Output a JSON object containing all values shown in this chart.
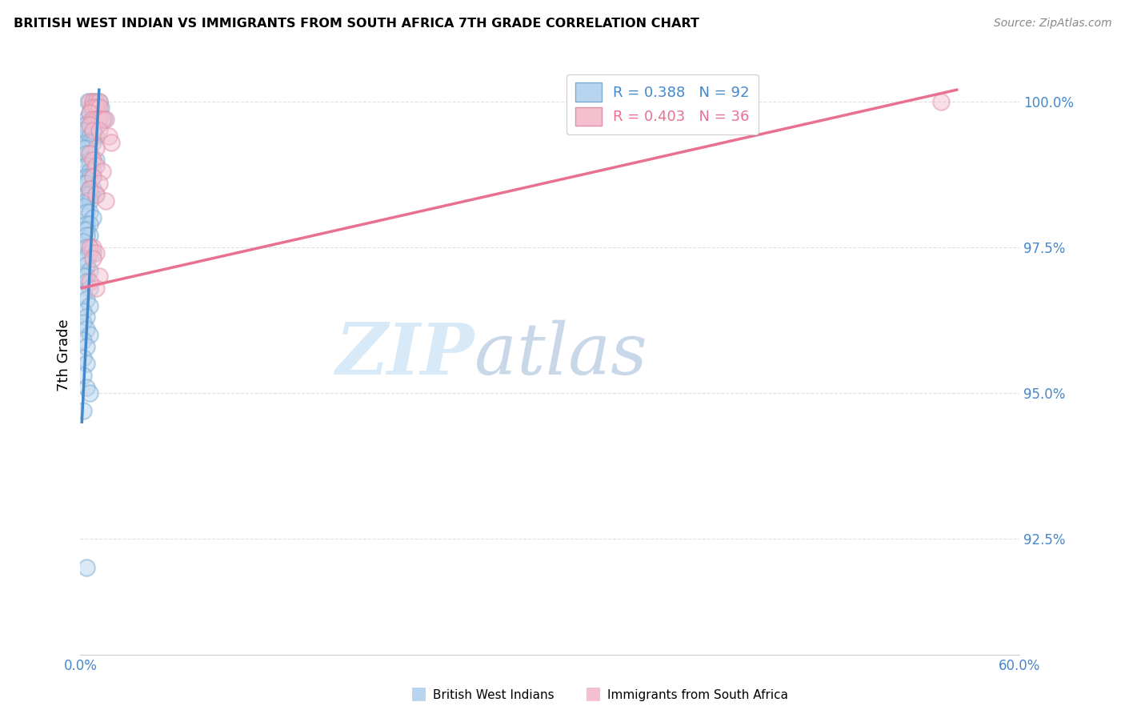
{
  "title": "BRITISH WEST INDIAN VS IMMIGRANTS FROM SOUTH AFRICA 7TH GRADE CORRELATION CHART",
  "source": "Source: ZipAtlas.com",
  "ylabel": "7th Grade",
  "ytick_labels": [
    "100.0%",
    "97.5%",
    "95.0%",
    "92.5%"
  ],
  "ytick_values": [
    1.0,
    0.975,
    0.95,
    0.925
  ],
  "xlim": [
    0.0,
    0.6
  ],
  "ylim": [
    0.905,
    1.008
  ],
  "legend_entries": [
    {
      "label": "R = 0.388   N = 92",
      "facecolor": "#b8d4ee",
      "edgecolor": "#7aaad0"
    },
    {
      "label": "R = 0.403   N = 36",
      "facecolor": "#f4c0d0",
      "edgecolor": "#e090a8"
    }
  ],
  "legend_labels": [
    "British West Indians",
    "Immigrants from South Africa"
  ],
  "blue_color": "#7aaad0",
  "blue_face": "#b8d4ee",
  "pink_color": "#e090a8",
  "pink_face": "#f4c0d0",
  "blue_scatter_x": [
    0.005,
    0.008,
    0.01,
    0.012,
    0.007,
    0.009,
    0.013,
    0.011,
    0.008,
    0.006,
    0.004,
    0.007,
    0.009,
    0.01,
    0.012,
    0.014,
    0.015,
    0.006,
    0.004,
    0.003,
    0.006,
    0.008,
    0.004,
    0.002,
    0.006,
    0.01,
    0.004,
    0.006,
    0.008,
    0.004,
    0.002,
    0.006,
    0.004,
    0.006,
    0.008,
    0.01,
    0.006,
    0.004,
    0.008,
    0.006,
    0.004,
    0.006,
    0.008,
    0.002,
    0.004,
    0.006,
    0.008,
    0.004,
    0.006,
    0.01,
    0.004,
    0.006,
    0.002,
    0.004,
    0.006,
    0.008,
    0.004,
    0.006,
    0.002,
    0.004,
    0.006,
    0.004,
    0.002,
    0.006,
    0.004,
    0.008,
    0.006,
    0.004,
    0.002,
    0.004,
    0.006,
    0.004,
    0.002,
    0.004,
    0.006,
    0.002,
    0.004,
    0.006,
    0.002,
    0.004,
    0.002,
    0.004,
    0.006,
    0.002,
    0.004,
    0.002,
    0.004,
    0.002,
    0.004,
    0.006,
    0.002,
    0.004
  ],
  "blue_scatter_y": [
    1.0,
    1.0,
    1.0,
    1.0,
    0.999,
    0.999,
    0.999,
    0.998,
    0.998,
    0.998,
    0.997,
    0.997,
    0.997,
    0.997,
    0.997,
    0.997,
    0.997,
    0.996,
    0.996,
    0.996,
    0.995,
    0.995,
    0.995,
    0.995,
    0.994,
    0.994,
    0.993,
    0.993,
    0.993,
    0.992,
    0.992,
    0.991,
    0.991,
    0.99,
    0.99,
    0.99,
    0.989,
    0.989,
    0.988,
    0.988,
    0.987,
    0.987,
    0.987,
    0.986,
    0.986,
    0.985,
    0.985,
    0.984,
    0.984,
    0.984,
    0.983,
    0.983,
    0.982,
    0.981,
    0.981,
    0.98,
    0.979,
    0.979,
    0.978,
    0.978,
    0.977,
    0.977,
    0.976,
    0.975,
    0.975,
    0.974,
    0.974,
    0.973,
    0.973,
    0.972,
    0.971,
    0.97,
    0.97,
    0.969,
    0.968,
    0.967,
    0.966,
    0.965,
    0.964,
    0.963,
    0.962,
    0.961,
    0.96,
    0.959,
    0.958,
    0.956,
    0.955,
    0.953,
    0.951,
    0.95,
    0.947,
    0.92
  ],
  "pink_scatter_x": [
    0.006,
    0.008,
    0.01,
    0.012,
    0.008,
    0.01,
    0.012,
    0.006,
    0.008,
    0.01,
    0.012,
    0.014,
    0.016,
    0.006,
    0.008,
    0.012,
    0.018,
    0.02,
    0.01,
    0.006,
    0.008,
    0.01,
    0.014,
    0.008,
    0.012,
    0.006,
    0.01,
    0.016,
    0.008,
    0.006,
    0.01,
    0.008,
    0.012,
    0.006,
    0.01,
    0.55
  ],
  "pink_scatter_y": [
    1.0,
    1.0,
    1.0,
    1.0,
    0.999,
    0.999,
    0.999,
    0.998,
    0.997,
    0.997,
    0.997,
    0.997,
    0.997,
    0.996,
    0.995,
    0.995,
    0.994,
    0.993,
    0.992,
    0.991,
    0.99,
    0.989,
    0.988,
    0.987,
    0.986,
    0.985,
    0.984,
    0.983,
    0.975,
    0.975,
    0.974,
    0.973,
    0.97,
    0.969,
    0.968,
    1.0
  ],
  "blue_line_x": [
    0.001,
    0.012
  ],
  "blue_line_y": [
    0.945,
    1.002
  ],
  "pink_line_x": [
    0.001,
    0.56
  ],
  "pink_line_y": [
    0.968,
    1.002
  ],
  "watermark_zip": "ZIP",
  "watermark_atlas": "atlas",
  "watermark_color_zip": "#d8eaf8",
  "watermark_color_atlas": "#c8d8e8",
  "background_color": "#ffffff",
  "grid_color": "#dddddd"
}
